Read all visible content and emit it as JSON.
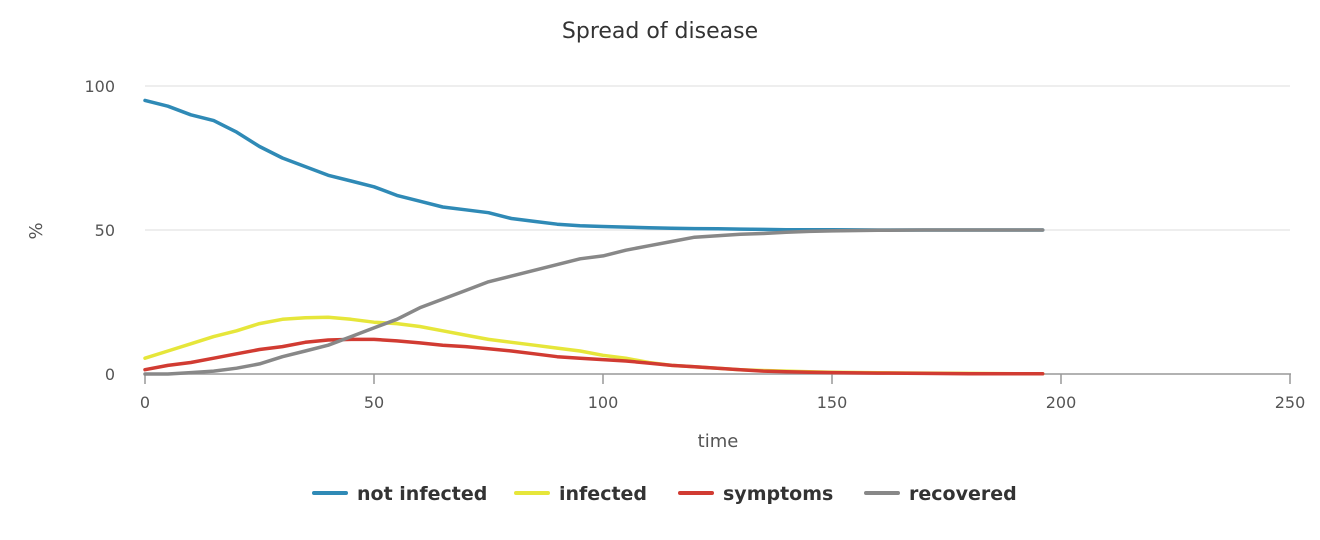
{
  "chart_data": {
    "type": "line",
    "title": "Spread of disease",
    "xlabel": "time",
    "ylabel": "%",
    "xlim": [
      0,
      250
    ],
    "ylim": [
      0,
      100
    ],
    "x_ticks": [
      "0",
      "50",
      "100",
      "150",
      "200",
      "250"
    ],
    "y_ticks": [
      "0",
      "50",
      "100"
    ],
    "grid": true,
    "legend_position": "bottom",
    "x": [
      0,
      5,
      10,
      15,
      20,
      25,
      30,
      35,
      40,
      45,
      50,
      55,
      60,
      65,
      70,
      75,
      80,
      85,
      90,
      95,
      100,
      105,
      110,
      115,
      120,
      125,
      130,
      135,
      140,
      145,
      150,
      160,
      170,
      180,
      190,
      196
    ],
    "series": [
      {
        "name": "not infected",
        "color": "#2f8ab6",
        "values": [
          95,
          93,
          90,
          88,
          84,
          79,
          75,
          72,
          69,
          67,
          65,
          62,
          60,
          58,
          57,
          56,
          54,
          53,
          52,
          51.5,
          51.2,
          51,
          50.8,
          50.6,
          50.5,
          50.4,
          50.3,
          50.2,
          50.1,
          50.1,
          50.1,
          50,
          50,
          50,
          50,
          50
        ]
      },
      {
        "name": "infected",
        "color": "#e6e63a",
        "values": [
          5.5,
          8,
          10.5,
          13,
          15,
          17.5,
          19,
          19.5,
          19.7,
          19,
          18,
          17.5,
          16.5,
          15,
          13.5,
          12,
          11,
          10,
          9,
          8,
          6.5,
          5.5,
          4,
          3,
          2.5,
          2,
          1.5,
          1.2,
          1,
          0.8,
          0.6,
          0.4,
          0.3,
          0.2,
          0.1,
          0.1
        ]
      },
      {
        "name": "symptoms",
        "color": "#d13b32",
        "values": [
          1.5,
          3,
          4,
          5.5,
          7,
          8.5,
          9.5,
          11,
          11.8,
          12,
          12,
          11.5,
          10.8,
          10,
          9.5,
          8.8,
          8,
          7,
          6,
          5.5,
          5,
          4.5,
          3.8,
          3,
          2.5,
          2,
          1.5,
          1,
          0.8,
          0.6,
          0.5,
          0.3,
          0.2,
          0.1,
          0.1,
          0.1
        ]
      },
      {
        "name": "recovered",
        "color": "#888888",
        "values": [
          0,
          0,
          0.5,
          1,
          2,
          3.5,
          6,
          8,
          10,
          13,
          16,
          19,
          23,
          26,
          29,
          32,
          34,
          36,
          38,
          40,
          41,
          43,
          44.5,
          46,
          47.5,
          48,
          48.5,
          48.8,
          49.2,
          49.5,
          49.7,
          49.9,
          50,
          50,
          50,
          50
        ]
      }
    ]
  }
}
